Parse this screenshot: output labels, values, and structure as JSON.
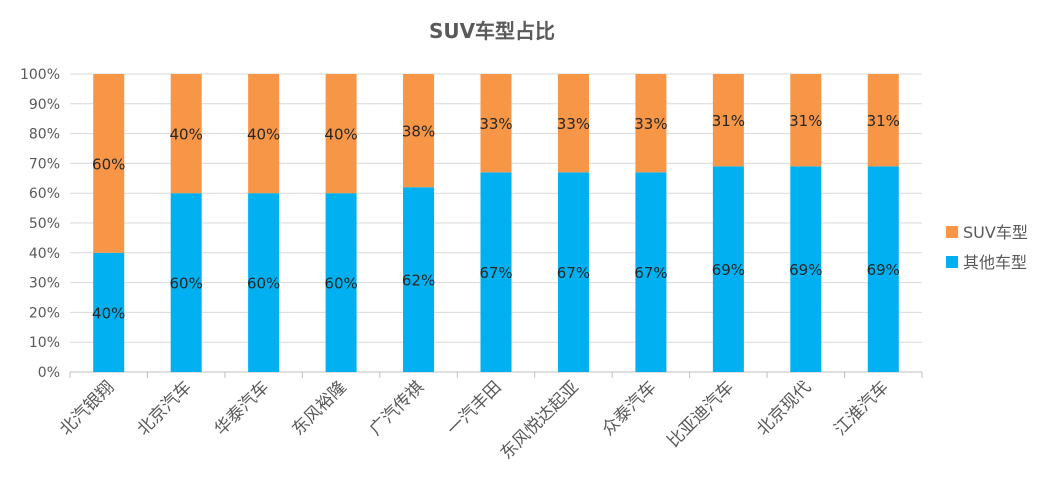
{
  "chart_data": {
    "type": "bar",
    "stacked": "percent",
    "title": "SUV车型占比",
    "categories": [
      "北汽银翔",
      "北京汽车",
      "华泰汽车",
      "东风裕隆",
      "广汽传祺",
      "一汽丰田",
      "东风悦达起亚",
      "众泰汽车",
      "比亚迪汽车",
      "北京现代",
      "江淮汽车"
    ],
    "series": [
      {
        "name": "其他车型",
        "color": "#00b0f0",
        "values": [
          40,
          60,
          60,
          60,
          62,
          67,
          67,
          67,
          69,
          69,
          69
        ]
      },
      {
        "name": "SUV车型",
        "color": "#f79646",
        "values": [
          60,
          40,
          40,
          40,
          38,
          33,
          33,
          33,
          31,
          31,
          31
        ]
      }
    ],
    "yticks": [
      "0%",
      "10%",
      "20%",
      "30%",
      "40%",
      "50%",
      "60%",
      "70%",
      "80%",
      "90%",
      "100%"
    ],
    "ylim": [
      0,
      100
    ],
    "legend": {
      "position": "right",
      "order": [
        "SUV车型",
        "其他车型"
      ]
    },
    "grid": true
  }
}
